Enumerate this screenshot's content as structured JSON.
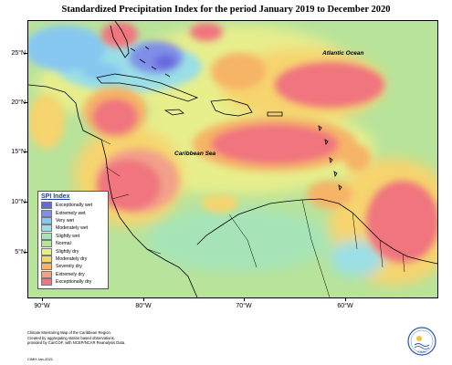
{
  "title": "Standardized Precipitation Index for the period January 2019 to December 2020",
  "axes": {
    "latitude_labels": [
      "25°N",
      "20°N",
      "15°N",
      "10°N",
      "5°N"
    ],
    "longitude_labels": [
      "90°W",
      "80°W",
      "70°W",
      "60°W"
    ]
  },
  "labels": {
    "atlantic": "Atlantic Ocean",
    "caribbean": "Caribbean Sea"
  },
  "legend": {
    "title": "SPI Index",
    "items": [
      {
        "label": "Exceptionally wet",
        "color": "#6666dd"
      },
      {
        "label": "Extremely wet",
        "color": "#7f8fe8"
      },
      {
        "label": "Very wet",
        "color": "#87c8f0"
      },
      {
        "label": "Moderately wet",
        "color": "#9adfe6"
      },
      {
        "label": "Slightly wet",
        "color": "#a6e4b8"
      },
      {
        "label": "Normal",
        "color": "#b8e39a"
      },
      {
        "label": "Slightly dry",
        "color": "#e7ee8c"
      },
      {
        "label": "Moderately dry",
        "color": "#f6d46e"
      },
      {
        "label": "Severely dry",
        "color": "#f6b466"
      },
      {
        "label": "Extremely dry",
        "color": "#f3a08a"
      },
      {
        "label": "Exceptionally dry",
        "color": "#f0747e"
      }
    ]
  },
  "footer": {
    "line1": "Climate Monitoring Map of the Caribbean Region.",
    "line2": "Created by aggregating station based observations,",
    "line3": "provided by CariCOF, with NCEP/NCAR Reanalysis Data.",
    "credit": "CIMH Jan-2021"
  },
  "logo_text": "CIMH"
}
